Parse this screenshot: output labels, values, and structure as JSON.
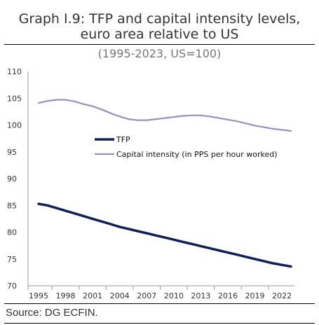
{
  "title_line1": "Graph I.9: TFP and capital intensity levels,",
  "title_line2": "euro area relative to US",
  "subtitle": "(1995-2023, US=100)",
  "source": "Source: DG ECFIN.",
  "chart_data": {
    "type": "line",
    "x": [
      1995,
      1996,
      1997,
      1998,
      1999,
      2000,
      2001,
      2002,
      2003,
      2004,
      2005,
      2006,
      2007,
      2008,
      2009,
      2010,
      2011,
      2012,
      2013,
      2014,
      2015,
      2016,
      2017,
      2018,
      2019,
      2020,
      2021,
      2022,
      2023
    ],
    "xticks": [
      "1995",
      "1998",
      "2001",
      "2004",
      "2007",
      "2010",
      "2013",
      "2016",
      "2019",
      "2022"
    ],
    "ylim": [
      70,
      110
    ],
    "yticks": [
      70,
      75,
      80,
      85,
      90,
      95,
      100,
      105,
      110
    ],
    "legend_position": "middle-left",
    "grid": false,
    "series": [
      {
        "name": "TFP",
        "color": "#0f1f57",
        "values": [
          85.3,
          85.0,
          84.5,
          84.0,
          83.5,
          83.0,
          82.5,
          82.0,
          81.5,
          81.0,
          80.6,
          80.2,
          79.8,
          79.4,
          79.0,
          78.6,
          78.2,
          77.8,
          77.4,
          77.0,
          76.6,
          76.2,
          75.8,
          75.4,
          75.0,
          74.6,
          74.2,
          73.9,
          73.6
        ]
      },
      {
        "name": "Capital intensity (in PPS per hour worked)",
        "color": "#9a8ec0",
        "values": [
          104.1,
          104.5,
          104.7,
          104.7,
          104.4,
          103.9,
          103.5,
          102.9,
          102.2,
          101.6,
          101.1,
          100.9,
          100.9,
          101.1,
          101.3,
          101.5,
          101.7,
          101.8,
          101.8,
          101.6,
          101.3,
          101.0,
          100.7,
          100.3,
          99.9,
          99.6,
          99.3,
          99.1,
          98.9
        ]
      }
    ]
  }
}
